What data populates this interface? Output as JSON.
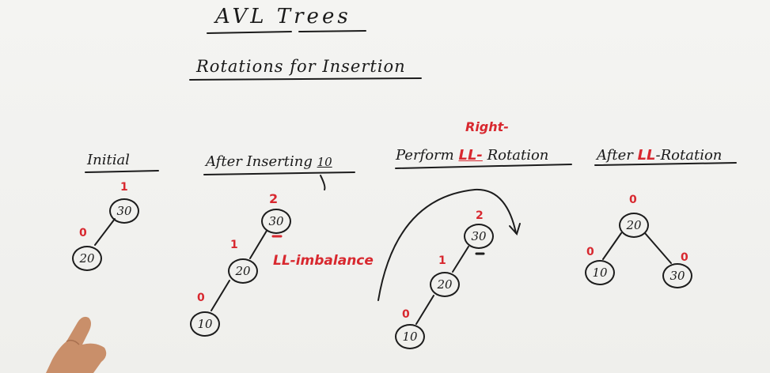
{
  "title": "AVL Trees",
  "subtitle": "Rotations for Insertion",
  "sections": [
    {
      "heading": "Initial",
      "nodes": [
        {
          "value": "30",
          "balance": "1"
        },
        {
          "value": "20",
          "balance": "0"
        }
      ]
    },
    {
      "heading_prefix": "After Inserting",
      "heading_value": "10",
      "nodes": [
        {
          "value": "30",
          "balance": "2"
        },
        {
          "value": "20",
          "balance": "1"
        },
        {
          "value": "10",
          "balance": "0"
        }
      ],
      "annotation": "LL-imbalance"
    },
    {
      "heading_prefix": "Perform",
      "heading_highlight_top": "Right-",
      "heading_highlight": "LL-",
      "heading_suffix": "Rotation",
      "nodes": [
        {
          "value": "30",
          "balance": "2"
        },
        {
          "value": "20",
          "balance": "1"
        },
        {
          "value": "10",
          "balance": "0"
        }
      ]
    },
    {
      "heading_prefix": "After",
      "heading_highlight": "LL",
      "heading_suffix": "-Rotation",
      "nodes": [
        {
          "value": "20",
          "balance": "0"
        },
        {
          "value": "10",
          "balance": "0"
        },
        {
          "value": "30",
          "balance": "0"
        }
      ]
    }
  ],
  "colors": {
    "ink": "#1a1a1a",
    "marker_red": "#d8282f",
    "board": "#f2f2f0"
  }
}
